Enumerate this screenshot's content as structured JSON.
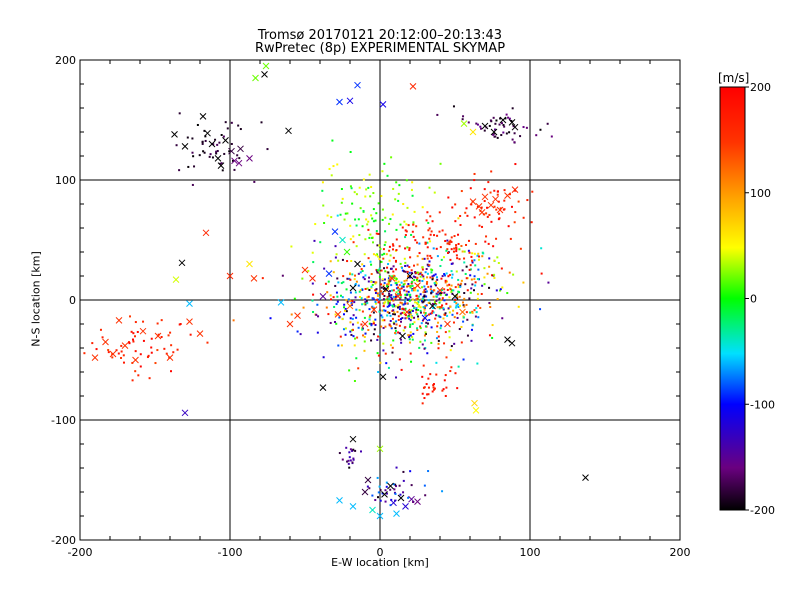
{
  "chart_data": {
    "type": "scatter",
    "title": "Tromsø 20170121 20:12:00–20:13:43",
    "subtitle": "RwPretec (8p) EXPERIMENTAL SKYMAP",
    "xlabel": "E-W location [km]",
    "ylabel": "N-S location [km]",
    "xlim": [
      -200,
      200
    ],
    "ylim": [
      -200,
      200
    ],
    "x_ticks": [
      "-200",
      "-100",
      "0",
      "100",
      "200"
    ],
    "y_ticks": [
      "-200",
      "-100",
      "0",
      "100",
      "200"
    ],
    "grid": true,
    "colorbar": {
      "label": "[m/s]",
      "range": [
        -200,
        200
      ],
      "ticks": [
        "-200",
        "-100",
        "0",
        "100",
        "200"
      ],
      "colormap": "rainbow (black-purple-blue-cyan-green-yellow-orange-red)"
    },
    "markers": {
      "x": "large detections",
      "dot": "small detections"
    },
    "x_points": [
      [
        -190,
        -48,
        150
      ],
      [
        -183,
        -35,
        150
      ],
      [
        -178,
        -45,
        150
      ],
      [
        -174,
        -17,
        150
      ],
      [
        -170,
        -38,
        150
      ],
      [
        -163,
        -50,
        150
      ],
      [
        -158,
        -26,
        150
      ],
      [
        -148,
        -30,
        150
      ],
      [
        -140,
        -48,
        150
      ],
      [
        -127,
        -18,
        150
      ],
      [
        -120,
        -28,
        150
      ],
      [
        -116,
        56,
        160
      ],
      [
        -100,
        20,
        160
      ],
      [
        -87,
        30,
        60
      ],
      [
        -84,
        18,
        150
      ],
      [
        -66,
        -2,
        -60
      ],
      [
        -60,
        -20,
        150
      ],
      [
        -55,
        -13,
        150
      ],
      [
        -50,
        25,
        150
      ],
      [
        -45,
        18,
        160
      ],
      [
        -38,
        3,
        -150
      ],
      [
        -34,
        22,
        -90
      ],
      [
        -30,
        57,
        -90
      ],
      [
        -25,
        50,
        -40
      ],
      [
        -22,
        40,
        10
      ],
      [
        -28,
        -12,
        150
      ],
      [
        -20,
        -5,
        120
      ],
      [
        -15,
        30,
        -200
      ],
      [
        -137,
        138,
        -200
      ],
      [
        -130,
        128,
        -200
      ],
      [
        -118,
        153,
        -200
      ],
      [
        -115,
        139,
        -200
      ],
      [
        -112,
        130,
        -200
      ],
      [
        -108,
        118,
        -200
      ],
      [
        -106,
        112,
        -200
      ],
      [
        -103,
        133,
        -200
      ],
      [
        -99,
        124,
        -180
      ],
      [
        -97,
        116,
        -160
      ],
      [
        -93,
        126,
        -180
      ],
      [
        -94,
        114,
        -160
      ],
      [
        -87,
        118,
        -160
      ],
      [
        -77,
        188,
        -200
      ],
      [
        -61,
        141,
        -200
      ],
      [
        -27,
        165,
        -90
      ],
      [
        -20,
        166,
        -110
      ],
      [
        -15,
        179,
        -90
      ],
      [
        2,
        163,
        -110
      ],
      [
        22,
        178,
        160
      ],
      [
        56,
        147,
        30
      ],
      [
        62,
        140,
        60
      ],
      [
        70,
        145,
        -200
      ],
      [
        76,
        140,
        -200
      ],
      [
        82,
        150,
        -200
      ],
      [
        88,
        148,
        -200
      ],
      [
        90,
        144,
        -200
      ],
      [
        -76,
        195,
        20
      ],
      [
        -83,
        185,
        20
      ],
      [
        62,
        82,
        150
      ],
      [
        66,
        78,
        150
      ],
      [
        70,
        86,
        150
      ],
      [
        74,
        79,
        150
      ],
      [
        77,
        84,
        150
      ],
      [
        80,
        75,
        150
      ],
      [
        85,
        87,
        150
      ],
      [
        68,
        73,
        150
      ],
      [
        90,
        92,
        160
      ],
      [
        -132,
        31,
        -200
      ],
      [
        -136,
        17,
        40
      ],
      [
        -127,
        -3,
        -60
      ],
      [
        -130,
        -94,
        -130
      ],
      [
        -38,
        -73,
        -200
      ],
      [
        2,
        -64,
        -200
      ],
      [
        -18,
        -116,
        -200
      ],
      [
        0,
        -124,
        30
      ],
      [
        -27,
        -167,
        -60
      ],
      [
        -18,
        -172,
        -60
      ],
      [
        -10,
        -160,
        -180
      ],
      [
        -8,
        -150,
        -180
      ],
      [
        -5,
        -175,
        -40
      ],
      [
        0,
        -180,
        -60
      ],
      [
        3,
        -162,
        -200
      ],
      [
        7,
        -155,
        -200
      ],
      [
        9,
        -169,
        -120
      ],
      [
        11,
        -178,
        -60
      ],
      [
        14,
        -165,
        -200
      ],
      [
        17,
        -172,
        -120
      ],
      [
        21,
        -166,
        -150
      ],
      [
        25,
        -168,
        -160
      ],
      [
        137,
        -148,
        -200
      ],
      [
        12,
        3,
        150
      ],
      [
        18,
        -10,
        150
      ],
      [
        25,
        12,
        160
      ],
      [
        35,
        -5,
        -200
      ],
      [
        40,
        8,
        150
      ],
      [
        -4,
        -8,
        150
      ],
      [
        8,
        18,
        150
      ],
      [
        30,
        -15,
        -100
      ],
      [
        50,
        3,
        -200
      ],
      [
        55,
        -10,
        120
      ],
      [
        63,
        -86,
        70
      ],
      [
        64,
        -92,
        50
      ],
      [
        85,
        -33,
        -200
      ],
      [
        88,
        -36,
        -200
      ],
      [
        4,
        9,
        -200
      ],
      [
        -10,
        -20,
        150
      ],
      [
        -18,
        10,
        -200
      ],
      [
        20,
        20,
        -200
      ],
      [
        45,
        -20,
        150
      ],
      [
        15,
        -30,
        -200
      ]
    ],
    "dot_clusters": [
      {
        "cx": -160,
        "cy": -38,
        "sx": 18,
        "sy": 12,
        "n": 60,
        "vmin": 140,
        "vmax": 200
      },
      {
        "cx": -112,
        "cy": 125,
        "sx": 14,
        "sy": 12,
        "n": 50,
        "vmin": -200,
        "vmax": -170
      },
      {
        "cx": 80,
        "cy": 145,
        "sx": 12,
        "sy": 8,
        "n": 50,
        "vmin": -200,
        "vmax": -150
      },
      {
        "cx": 75,
        "cy": 80,
        "sx": 15,
        "sy": 12,
        "n": 60,
        "vmin": 140,
        "vmax": 200
      },
      {
        "cx": 15,
        "cy": 0,
        "sx": 28,
        "sy": 20,
        "n": 900,
        "vmin": -200,
        "vmax": 200
      },
      {
        "cx": -5,
        "cy": 70,
        "sx": 18,
        "sy": 22,
        "n": 120,
        "vmin": -20,
        "vmax": 60
      },
      {
        "cx": 10,
        "cy": -160,
        "sx": 10,
        "sy": 10,
        "n": 40,
        "vmin": -200,
        "vmax": -60
      },
      {
        "cx": -20,
        "cy": -130,
        "sx": 4,
        "sy": 6,
        "n": 20,
        "vmin": -200,
        "vmax": -120
      },
      {
        "cx": 38,
        "cy": -70,
        "sx": 6,
        "sy": 8,
        "n": 30,
        "vmin": 160,
        "vmax": 200
      },
      {
        "cx": 40,
        "cy": 48,
        "sx": 18,
        "sy": 10,
        "n": 80,
        "vmin": 150,
        "vmax": 200
      },
      {
        "cx": 60,
        "cy": 25,
        "sx": 20,
        "sy": 15,
        "n": 60,
        "vmin": -200,
        "vmax": 200
      }
    ]
  }
}
